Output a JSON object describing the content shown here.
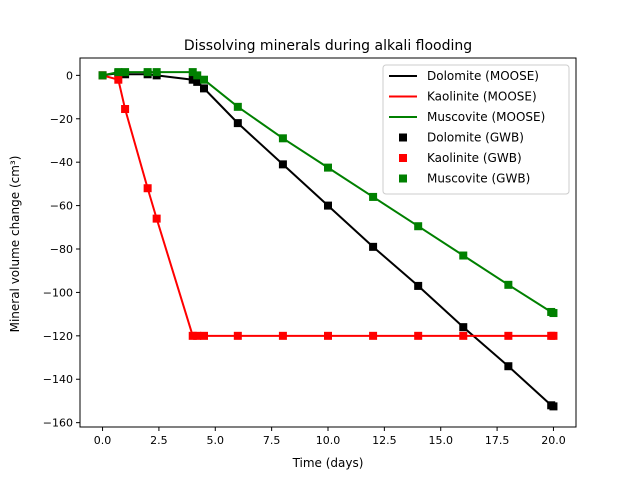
{
  "chart_data": {
    "type": "line",
    "title": "Dissolving minerals during alkali flooding",
    "xlabel": "Time (days)",
    "ylabel": "Mineral volume change (cm³)",
    "xlim": [
      -1,
      21
    ],
    "ylim": [
      -162,
      8
    ],
    "xticks": [
      "0.0",
      "2.5",
      "5.0",
      "7.5",
      "10.0",
      "12.5",
      "15.0",
      "17.5",
      "20.0"
    ],
    "xtick_values": [
      0,
      2.5,
      5,
      7.5,
      10,
      12.5,
      15,
      17.5,
      20
    ],
    "yticks": [
      "0",
      "−20",
      "−40",
      "−60",
      "−80",
      "−100",
      "−120",
      "−140",
      "−160"
    ],
    "ytick_values": [
      0,
      -20,
      -40,
      -60,
      -80,
      -100,
      -120,
      -140,
      -160
    ],
    "grid": false,
    "legend_position": "top-right",
    "series": [
      {
        "name": "Dolomite (MOOSE)",
        "kind": "line",
        "color": "#000000",
        "x": [
          0,
          0.7,
          1,
          2,
          2.4,
          4,
          4.2,
          4.5,
          6,
          8,
          10,
          12,
          14,
          16,
          18,
          19.9,
          20
        ],
        "y": [
          0,
          1,
          0.5,
          0.5,
          0,
          -2,
          -3,
          -6,
          -22,
          -41,
          -60,
          -79,
          -97,
          -116,
          -134,
          -152,
          -152.5
        ]
      },
      {
        "name": "Kaolinite (MOOSE)",
        "kind": "line",
        "color": "#ff0000",
        "x": [
          0,
          0.7,
          1,
          2,
          2.4,
          4,
          4.2,
          4.5,
          6,
          8,
          10,
          12,
          14,
          16,
          18,
          19.9,
          20
        ],
        "y": [
          0,
          -2,
          -15.5,
          -52,
          -66,
          -120,
          -120,
          -120,
          -120,
          -120,
          -120,
          -120,
          -120,
          -120,
          -120,
          -120,
          -120
        ]
      },
      {
        "name": "Muscovite (MOOSE)",
        "kind": "line",
        "color": "#008000",
        "x": [
          0,
          0.7,
          1,
          2,
          2.4,
          4,
          4.2,
          4.5,
          6,
          8,
          10,
          12,
          14,
          16,
          18,
          19.9,
          20
        ],
        "y": [
          0,
          1.5,
          1.5,
          1.5,
          1.5,
          1.5,
          0,
          -2,
          -14.5,
          -29,
          -42.5,
          -56,
          -69.5,
          -83,
          -96.5,
          -109,
          -109.5
        ]
      },
      {
        "name": "Dolomite (GWB)",
        "kind": "marker",
        "color": "#000000",
        "x": [
          0,
          0.7,
          1,
          2,
          2.4,
          4,
          4.2,
          4.5,
          6,
          8,
          10,
          12,
          14,
          16,
          18,
          19.9,
          20
        ],
        "y": [
          0,
          1,
          0.5,
          0.5,
          0,
          -2,
          -3,
          -6,
          -22,
          -41,
          -60,
          -79,
          -97,
          -116,
          -134,
          -152,
          -152.5
        ]
      },
      {
        "name": "Kaolinite (GWB)",
        "kind": "marker",
        "color": "#ff0000",
        "x": [
          0,
          0.7,
          1,
          2,
          2.4,
          4,
          4.2,
          4.5,
          6,
          8,
          10,
          12,
          14,
          16,
          18,
          19.9,
          20
        ],
        "y": [
          0,
          -2,
          -15.5,
          -52,
          -66,
          -120,
          -120,
          -120,
          -120,
          -120,
          -120,
          -120,
          -120,
          -120,
          -120,
          -120,
          -120
        ]
      },
      {
        "name": "Muscovite (GWB)",
        "kind": "marker",
        "color": "#008000",
        "x": [
          0,
          0.7,
          1,
          2,
          2.4,
          4,
          4.2,
          4.5,
          6,
          8,
          10,
          12,
          14,
          16,
          18,
          19.9,
          20
        ],
        "y": [
          0,
          1.5,
          1.5,
          1.5,
          1.5,
          1.5,
          0,
          -2,
          -14.5,
          -29,
          -42.5,
          -56,
          -69.5,
          -83,
          -96.5,
          -109,
          -109.5
        ]
      }
    ]
  }
}
